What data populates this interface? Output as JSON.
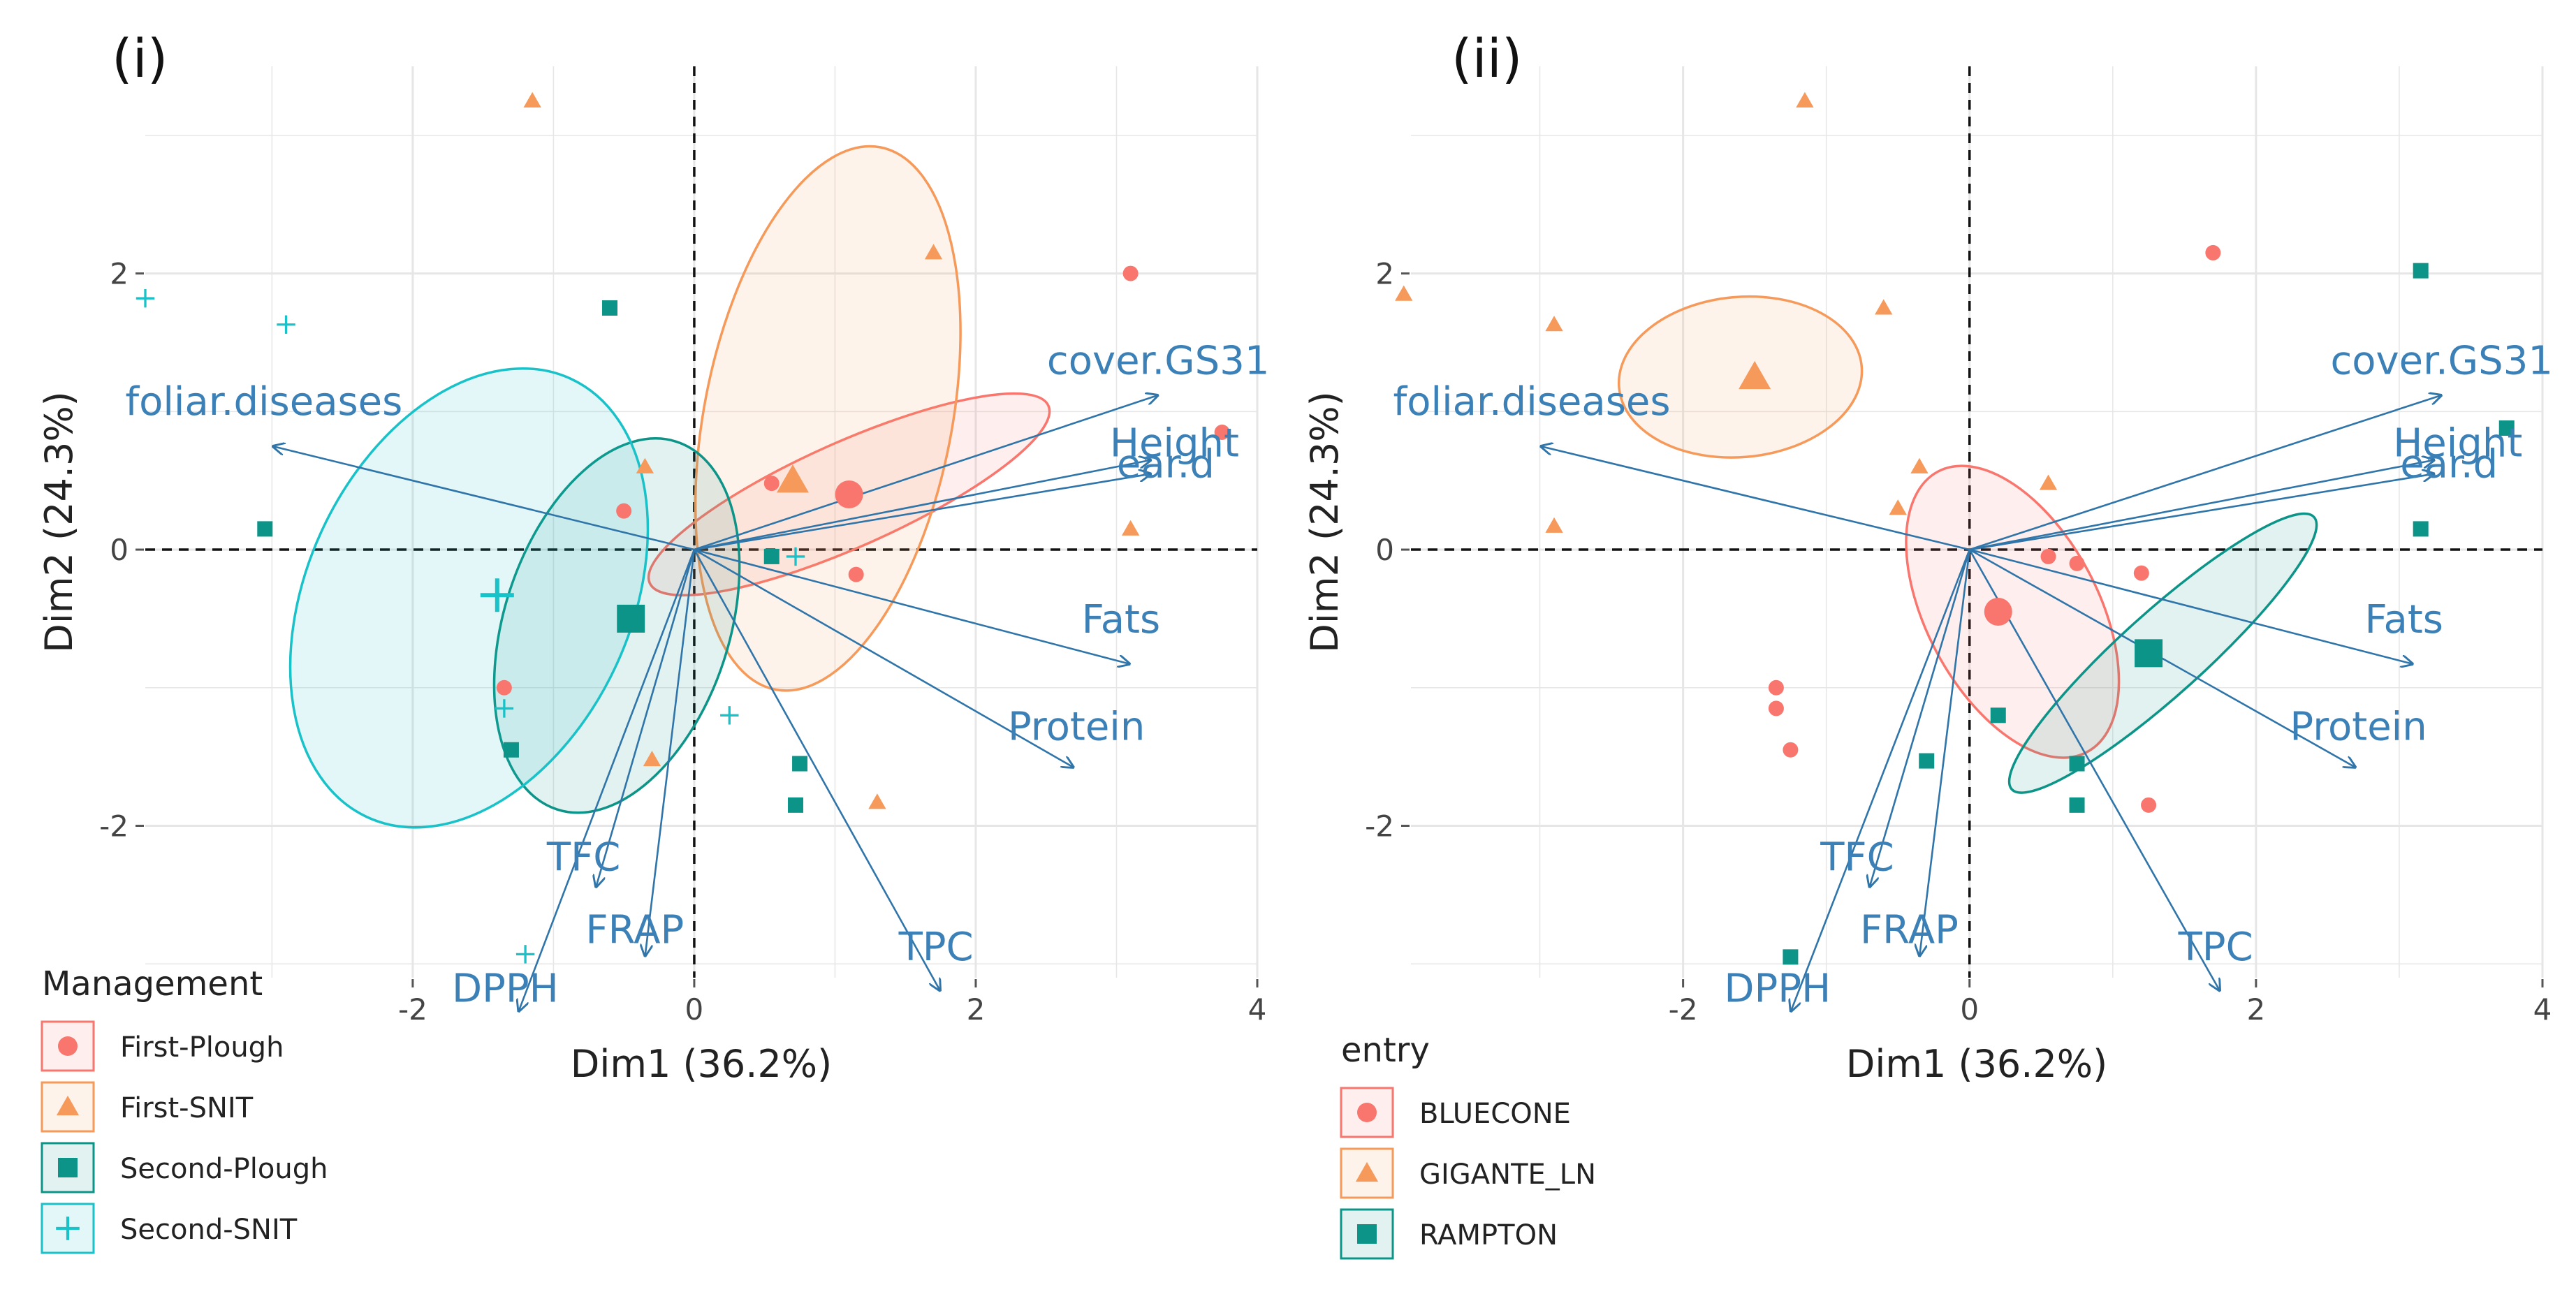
{
  "colors": {
    "red": "#f8766d",
    "orange": "#f59a5a",
    "teal": "#0d9488",
    "cyan": "#19c1c9",
    "arrow": "#2f75a9",
    "grid": "#e6e6e6",
    "ref": "#111111"
  },
  "chart_data": [
    {
      "type": "scatter",
      "subtype": "pca-biplot",
      "panel_label": "(i)",
      "xlabel": "Dim1 (36.2%)",
      "ylabel": "Dim2 (24.3%)",
      "xlim": [
        -3.9,
        4.0
      ],
      "ylim": [
        -3.1,
        3.5
      ],
      "xticks": [
        -2,
        0,
        2,
        4
      ],
      "yticks": [
        -2,
        0,
        2
      ],
      "xtick_labels": [
        "-2",
        "0",
        "2",
        "4"
      ],
      "ytick_labels": [
        "-2",
        "0",
        "2"
      ],
      "legend": {
        "title": "Management",
        "position": "bottom-left",
        "entries": [
          {
            "label": "First-Plough",
            "shape": "circle",
            "color_key": "red"
          },
          {
            "label": "First-SNIT",
            "shape": "triangle",
            "color_key": "orange"
          },
          {
            "label": "Second-Plough",
            "shape": "square",
            "color_key": "teal"
          },
          {
            "label": "Second-SNIT",
            "shape": "plus",
            "color_key": "cyan"
          }
        ]
      },
      "variables": [
        {
          "name": "cover.GS31",
          "x": 3.3,
          "y": 1.12
        },
        {
          "name": "Height",
          "x": 3.25,
          "y": 0.65
        },
        {
          "name": "ear.d",
          "x": 3.25,
          "y": 0.55
        },
        {
          "name": "Fats",
          "x": 3.1,
          "y": -0.83
        },
        {
          "name": "Protein",
          "x": 2.7,
          "y": -1.58
        },
        {
          "name": "foliar.diseases",
          "x": -3.0,
          "y": 0.75
        },
        {
          "name": "TFC",
          "x": -0.7,
          "y": -2.45
        },
        {
          "name": "FRAP",
          "x": -0.35,
          "y": -2.95
        },
        {
          "name": "DPPH",
          "x": -1.25,
          "y": -3.35
        },
        {
          "name": "TPC",
          "x": 1.75,
          "y": -3.2
        }
      ],
      "groups": [
        {
          "name": "First-Plough",
          "shape": "circle",
          "color_key": "red",
          "points": [
            [
              3.1,
              2.0
            ],
            [
              3.75,
              0.85
            ],
            [
              0.55,
              0.48
            ],
            [
              -0.5,
              0.28
            ],
            [
              1.15,
              -0.18
            ],
            [
              -1.35,
              -1.0
            ]
          ],
          "centroid": [
            1.1,
            0.4
          ],
          "ellipse": {
            "cx": 1.1,
            "cy": 0.4,
            "rx": 1.55,
            "ry": 0.38,
            "angle": 24
          }
        },
        {
          "name": "First-SNIT",
          "shape": "triangle",
          "color_key": "orange",
          "points": [
            [
              -1.15,
              3.25
            ],
            [
              1.7,
              2.15
            ],
            [
              -0.35,
              0.6
            ],
            [
              3.1,
              0.15
            ],
            [
              -0.3,
              -1.52
            ],
            [
              1.3,
              -1.83
            ]
          ],
          "centroid": [
            0.7,
            0.5
          ],
          "ellipse": {
            "cx": 0.95,
            "cy": 0.95,
            "rx": 0.88,
            "ry": 2.0,
            "angle": -11
          }
        },
        {
          "name": "Second-Plough",
          "shape": "square",
          "color_key": "teal",
          "points": [
            [
              -0.6,
              1.75
            ],
            [
              -3.05,
              0.15
            ],
            [
              0.55,
              -0.05
            ],
            [
              0.75,
              -1.55
            ],
            [
              0.72,
              -1.85
            ],
            [
              -1.3,
              -1.45
            ]
          ],
          "centroid": [
            -0.45,
            -0.5
          ],
          "ellipse": {
            "cx": -0.55,
            "cy": -0.55,
            "rx": 0.8,
            "ry": 1.4,
            "angle": -18
          }
        },
        {
          "name": "Second-SNIT",
          "shape": "plus",
          "color_key": "cyan",
          "points": [
            [
              -3.9,
              1.82
            ],
            [
              -2.9,
              1.63
            ],
            [
              0.72,
              -0.05
            ],
            [
              0.25,
              -1.2
            ],
            [
              -1.35,
              -1.15
            ],
            [
              -1.2,
              -2.93
            ]
          ],
          "centroid": [
            -1.4,
            -0.33
          ],
          "ellipse": {
            "cx": -1.6,
            "cy": -0.35,
            "rx": 1.15,
            "ry": 1.75,
            "angle": -25
          }
        }
      ]
    },
    {
      "type": "scatter",
      "subtype": "pca-biplot",
      "panel_label": "(ii)",
      "xlabel": "Dim1 (36.2%)",
      "ylabel": "Dim2 (24.3%)",
      "xlim": [
        -3.9,
        4.0
      ],
      "ylim": [
        -3.1,
        3.5
      ],
      "xticks": [
        -2,
        0,
        2,
        4
      ],
      "yticks": [
        -2,
        0,
        2
      ],
      "xtick_labels": [
        "-2",
        "0",
        "2",
        "4"
      ],
      "ytick_labels": [
        "-2",
        "0",
        "2"
      ],
      "legend": {
        "title": "entry",
        "position": "bottom-left",
        "entries": [
          {
            "label": "BLUECONE",
            "shape": "circle",
            "color_key": "red"
          },
          {
            "label": "GIGANTE_LN",
            "shape": "triangle",
            "color_key": "orange"
          },
          {
            "label": "RAMPTON",
            "shape": "square",
            "color_key": "teal"
          }
        ]
      },
      "variables": [
        {
          "name": "cover.GS31",
          "x": 3.3,
          "y": 1.12
        },
        {
          "name": "Height",
          "x": 3.25,
          "y": 0.65
        },
        {
          "name": "ear.d",
          "x": 3.25,
          "y": 0.55
        },
        {
          "name": "Fats",
          "x": 3.1,
          "y": -0.83
        },
        {
          "name": "Protein",
          "x": 2.7,
          "y": -1.58
        },
        {
          "name": "foliar.diseases",
          "x": -3.0,
          "y": 0.75
        },
        {
          "name": "TFC",
          "x": -0.7,
          "y": -2.45
        },
        {
          "name": "FRAP",
          "x": -0.35,
          "y": -2.95
        },
        {
          "name": "DPPH",
          "x": -1.25,
          "y": -3.35
        },
        {
          "name": "TPC",
          "x": 1.75,
          "y": -3.2
        }
      ],
      "groups": [
        {
          "name": "BLUECONE",
          "shape": "circle",
          "color_key": "red",
          "points": [
            [
              1.7,
              2.15
            ],
            [
              0.55,
              -0.05
            ],
            [
              0.75,
              -0.1
            ],
            [
              1.2,
              -0.17
            ],
            [
              -1.35,
              -1.0
            ],
            [
              -1.35,
              -1.15
            ],
            [
              -1.25,
              -1.45
            ],
            [
              1.25,
              -1.85
            ]
          ],
          "centroid": [
            0.2,
            -0.45
          ],
          "ellipse": {
            "cx": 0.3,
            "cy": -0.45,
            "rx": 0.6,
            "ry": 1.15,
            "angle": 28
          }
        },
        {
          "name": "GIGANTE_LN",
          "shape": "triangle",
          "color_key": "orange",
          "points": [
            [
              -1.15,
              3.25
            ],
            [
              -3.95,
              1.85
            ],
            [
              -2.9,
              1.63
            ],
            [
              -0.6,
              1.75
            ],
            [
              -0.35,
              0.6
            ],
            [
              -0.5,
              0.3
            ],
            [
              0.55,
              0.48
            ],
            [
              -2.9,
              0.17
            ]
          ],
          "centroid": [
            -1.5,
            1.25
          ],
          "ellipse": {
            "cx": -1.6,
            "cy": 1.25,
            "rx": 0.85,
            "ry": 0.58,
            "angle": 5
          }
        },
        {
          "name": "RAMPTON",
          "shape": "square",
          "color_key": "teal",
          "points": [
            [
              3.15,
              2.02
            ],
            [
              3.75,
              0.88
            ],
            [
              3.15,
              0.15
            ],
            [
              0.2,
              -1.2
            ],
            [
              -0.3,
              -1.53
            ],
            [
              0.75,
              -1.55
            ],
            [
              0.75,
              -1.85
            ],
            [
              -1.25,
              -2.95
            ]
          ],
          "centroid": [
            1.25,
            -0.75
          ],
          "ellipse": {
            "cx": 1.35,
            "cy": -0.75,
            "rx": 1.42,
            "ry": 0.3,
            "angle": 42
          }
        }
      ]
    }
  ]
}
